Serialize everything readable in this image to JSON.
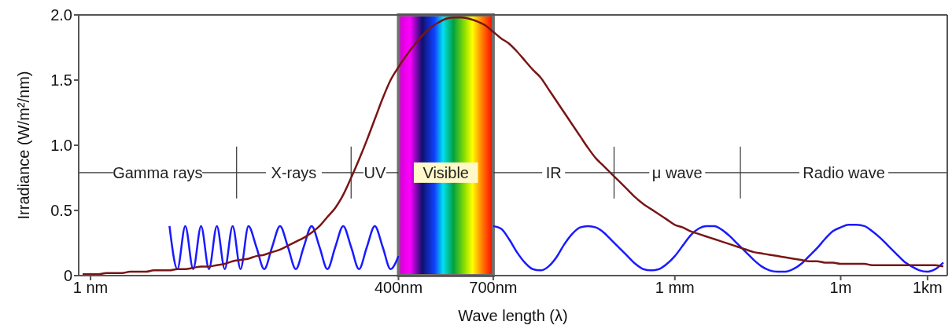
{
  "chart_data": {
    "type": "line",
    "xlabel": "Wave length (λ)",
    "ylabel": "Irradiance (W/m²/nm)",
    "categories": [
      null,
      "1 nm",
      null,
      null,
      null,
      null,
      null,
      null,
      null,
      null,
      null,
      null,
      null,
      null,
      null,
      null,
      null,
      null,
      null,
      null,
      null,
      null,
      null,
      null,
      null,
      null,
      null,
      null,
      null,
      null,
      null,
      null,
      null,
      null,
      null,
      null,
      null,
      null,
      null,
      null,
      "400nm",
      null,
      null,
      null,
      null,
      null,
      null,
      null,
      null,
      null,
      null,
      null,
      "700nm",
      null,
      null,
      null,
      null,
      null,
      null,
      null,
      null,
      null,
      null,
      null,
      null,
      null,
      null,
      null,
      null,
      null,
      null,
      null,
      null,
      null,
      null,
      "1 mm",
      null,
      null,
      null,
      null,
      null,
      null,
      null,
      null,
      null,
      null,
      null,
      null,
      null,
      null,
      null,
      null,
      null,
      null,
      null,
      null,
      "1m",
      null,
      null,
      null,
      null,
      null,
      null,
      null,
      null,
      null,
      null,
      "1km",
      null,
      null
    ],
    "ylim": [
      0,
      2.0
    ],
    "yticks": [
      0,
      0.5,
      {
        "value": 1,
        "label": "1.0"
      },
      1.5,
      {
        "value": 2,
        "label": "2.0"
      }
    ],
    "line_style": "solid",
    "bands": [
      {
        "axis": "x",
        "from": "400nm",
        "to": "700nm",
        "label": "Visible",
        "color": "#707070"
      }
    ],
    "annotations": [
      "Gamma rays",
      "X-rays",
      "UV",
      "IR",
      "μ wave",
      "Radio wave"
    ],
    "series": [
      {
        "color": "#1a1aff",
        "values": [
          null,
          null,
          null,
          null,
          null,
          null,
          null,
          null,
          null,
          null,
          null,
          0.38,
          0.05,
          0.38,
          0.05,
          0.38,
          0.05,
          0.38,
          0.05,
          0.38,
          0.05,
          0.38,
          0.22,
          0.05,
          0.22,
          0.38,
          0.22,
          0.05,
          0.22,
          0.38,
          0.22,
          0.05,
          0.22,
          0.38,
          0.22,
          0.05,
          0.22,
          0.38,
          0.22,
          0.05,
          0.15,
          null,
          null,
          null,
          null,
          null,
          null,
          null,
          null,
          null,
          null,
          null,
          0.38,
          0.36,
          0.28,
          0.18,
          0.1,
          0.05,
          0.04,
          0.07,
          0.14,
          0.24,
          0.32,
          0.37,
          0.38,
          0.37,
          0.33,
          0.27,
          0.21,
          0.15,
          0.09,
          0.05,
          0.04,
          0.05,
          0.09,
          0.15,
          0.23,
          0.31,
          0.36,
          0.38,
          0.38,
          0.35,
          0.3,
          0.24,
          0.18,
          0.12,
          0.07,
          0.04,
          0.03,
          0.03,
          0.05,
          0.09,
          0.15,
          0.21,
          0.28,
          0.34,
          0.37,
          0.39,
          0.39,
          0.38,
          0.34,
          0.29,
          0.23,
          0.17,
          0.11,
          0.07,
          0.04,
          0.03,
          0.05,
          0.1
        ]
      },
      {
        "color": "#7a1515",
        "values": [
          0.01,
          0.01,
          0.01,
          0.02,
          0.02,
          0.02,
          0.03,
          0.03,
          0.03,
          0.04,
          0.04,
          0.04,
          0.05,
          0.05,
          0.06,
          0.07,
          0.07,
          0.08,
          0.09,
          0.11,
          0.12,
          0.13,
          0.15,
          0.16,
          0.18,
          0.2,
          0.23,
          0.26,
          0.29,
          0.33,
          0.38,
          0.45,
          0.52,
          0.62,
          0.75,
          0.89,
          1.04,
          1.2,
          1.36,
          1.5,
          1.6,
          1.69,
          1.77,
          1.84,
          1.9,
          1.94,
          1.97,
          1.98,
          1.98,
          1.97,
          1.95,
          1.92,
          1.87,
          1.82,
          1.78,
          1.72,
          1.65,
          1.58,
          1.52,
          1.43,
          1.34,
          1.25,
          1.16,
          1.07,
          0.98,
          0.9,
          0.84,
          0.78,
          0.72,
          0.66,
          0.6,
          0.55,
          0.51,
          0.47,
          0.43,
          0.39,
          0.37,
          0.34,
          0.32,
          0.3,
          0.28,
          0.26,
          0.24,
          0.22,
          0.2,
          0.18,
          0.17,
          0.16,
          0.15,
          0.14,
          0.13,
          0.12,
          0.11,
          0.11,
          0.1,
          0.1,
          0.09,
          0.09,
          0.09,
          0.09,
          0.08,
          0.08,
          0.08,
          0.08,
          0.08,
          0.08,
          0.08,
          0.08,
          0.08,
          0.07
        ]
      }
    ]
  }
}
